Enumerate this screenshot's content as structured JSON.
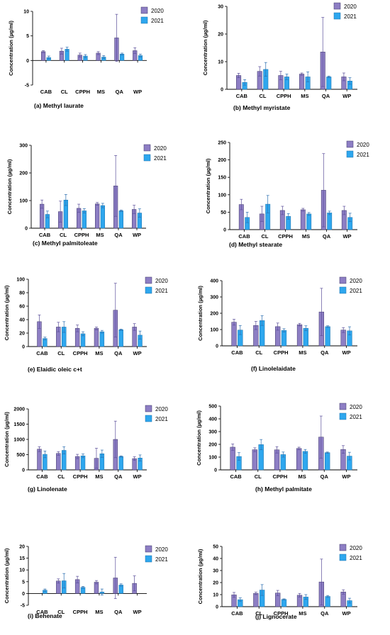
{
  "style": {
    "color_2020": "#8d7ec4",
    "color_2021": "#2ea7ee",
    "color_err": "#5b4f9a"
  },
  "chart_data": [
    {
      "type": "bar",
      "caption": "(a) Methyl laurate",
      "ylabel": "Concentration (µg/ml)",
      "ylim": [
        -5,
        10
      ],
      "yticks": [
        -5,
        0,
        5,
        10
      ],
      "categories": [
        "CAB",
        "CL",
        "CPPH",
        "MS",
        "QA",
        "WP"
      ],
      "series": [
        {
          "name": "2020",
          "values": [
            1.8,
            1.9,
            1.1,
            1.5,
            4.6,
            2.0
          ],
          "errors": [
            0.2,
            0.6,
            0.4,
            0.3,
            4.8,
            0.6
          ]
        },
        {
          "name": "2021",
          "values": [
            0.6,
            2.3,
            0.9,
            0.7,
            1.3,
            1.0
          ],
          "errors": [
            0.3,
            0.4,
            0.3,
            0.3,
            0.2,
            0.3
          ]
        }
      ]
    },
    {
      "type": "bar",
      "caption": "(b) Methyl myristate",
      "ylabel": "Concentration (µg/ml)",
      "ylim": [
        0,
        30
      ],
      "yticks": [
        0,
        10,
        20,
        30
      ],
      "categories": [
        "CAB",
        "CL",
        "CPPH",
        "MS",
        "QA",
        "WP"
      ],
      "series": [
        {
          "name": "2020",
          "values": [
            5.0,
            6.5,
            5.0,
            5.5,
            13.5,
            4.5
          ],
          "errors": [
            0.8,
            1.7,
            1.5,
            0.4,
            12.5,
            1.4
          ]
        },
        {
          "name": "2021",
          "values": [
            2.5,
            7.2,
            4.5,
            4.5,
            4.5,
            3.0
          ],
          "errors": [
            1.0,
            2.5,
            1.0,
            1.8,
            0.3,
            1.2
          ]
        }
      ]
    },
    {
      "type": "bar",
      "caption": "(c) Methyl palmitoleate",
      "ylabel": "Concentration (µg/ml)",
      "ylim": [
        0,
        300
      ],
      "yticks": [
        0,
        100,
        200,
        300
      ],
      "categories": [
        "CAB",
        "CL",
        "CPPH",
        "MS",
        "QA",
        "WP"
      ],
      "series": [
        {
          "name": "2020",
          "values": [
            87,
            60,
            72,
            88,
            153,
            68
          ],
          "errors": [
            15,
            38,
            15,
            5,
            110,
            15
          ]
        },
        {
          "name": "2021",
          "values": [
            50,
            102,
            63,
            82,
            63,
            55
          ],
          "errors": [
            12,
            20,
            8,
            8,
            3,
            15
          ]
        }
      ]
    },
    {
      "type": "bar",
      "caption": "(d) Methyl stearate",
      "ylabel": "Concentration (µg/ml)",
      "ylim": [
        0,
        250
      ],
      "yticks": [
        0,
        50,
        100,
        150,
        200,
        250
      ],
      "categories": [
        "CAB",
        "CL",
        "CPPH",
        "MS",
        "QA",
        "WP"
      ],
      "series": [
        {
          "name": "2020",
          "values": [
            72,
            45,
            55,
            57,
            113,
            55
          ],
          "errors": [
            15,
            22,
            12,
            4,
            105,
            12
          ]
        },
        {
          "name": "2021",
          "values": [
            35,
            73,
            38,
            45,
            48,
            35
          ],
          "errors": [
            15,
            25,
            8,
            4,
            5,
            12
          ]
        }
      ]
    },
    {
      "type": "bar",
      "caption": "(e) Elaidic oleic c+t",
      "ylabel": "Concentration (µg/ml)",
      "ylim": [
        0,
        100
      ],
      "yticks": [
        0,
        20,
        40,
        60,
        80,
        100
      ],
      "categories": [
        "CAB",
        "CL",
        "CPPH",
        "MS",
        "QA",
        "WP"
      ],
      "series": [
        {
          "name": "2020",
          "values": [
            37,
            29,
            27,
            27,
            54,
            29
          ],
          "errors": [
            10,
            7,
            5,
            2,
            40,
            5
          ]
        },
        {
          "name": "2021",
          "values": [
            12,
            29,
            19,
            22,
            25,
            17
          ],
          "errors": [
            2,
            8,
            3,
            2,
            1,
            6
          ]
        }
      ]
    },
    {
      "type": "bar",
      "caption": "(f) Linolelaidate",
      "ylabel": "Concentration (µg/ml)",
      "ylim": [
        0,
        400
      ],
      "yticks": [
        0,
        100,
        200,
        300,
        400
      ],
      "categories": [
        "CAB",
        "CL",
        "CPPH",
        "MS",
        "QA",
        "WP"
      ],
      "series": [
        {
          "name": "2020",
          "values": [
            145,
            125,
            118,
            130,
            208,
            97
          ],
          "errors": [
            18,
            25,
            22,
            8,
            145,
            15
          ]
        },
        {
          "name": "2021",
          "values": [
            97,
            155,
            95,
            108,
            118,
            92
          ],
          "errors": [
            28,
            30,
            10,
            15,
            5,
            25
          ]
        }
      ]
    },
    {
      "type": "bar",
      "caption": "(g) Linolenate",
      "ylabel": "Concentration (µg/ml)",
      "ylim": [
        0,
        2000
      ],
      "yticks": [
        0,
        500,
        1000,
        1500,
        2000
      ],
      "categories": [
        "CAB",
        "CL",
        "CPPH",
        "MS",
        "QA",
        "WP"
      ],
      "series": [
        {
          "name": "2020",
          "values": [
            680,
            540,
            440,
            380,
            1000,
            370
          ],
          "errors": [
            80,
            60,
            70,
            330,
            600,
            60
          ]
        },
        {
          "name": "2021",
          "values": [
            510,
            640,
            460,
            530,
            440,
            390
          ],
          "errors": [
            110,
            120,
            60,
            120,
            20,
            100
          ]
        }
      ]
    },
    {
      "type": "bar",
      "caption": "(h) Methyl palmitate",
      "ylabel": "Concentration (µg/ml)",
      "ylim": [
        0,
        500
      ],
      "yticks": [
        0,
        100,
        200,
        300,
        400,
        500
      ],
      "categories": [
        "CAB",
        "CL",
        "CPPH",
        "MS",
        "QA",
        "WP"
      ],
      "series": [
        {
          "name": "2020",
          "values": [
            178,
            158,
            157,
            168,
            257,
            160
          ],
          "errors": [
            25,
            15,
            25,
            10,
            165,
            30
          ]
        },
        {
          "name": "2021",
          "values": [
            105,
            198,
            120,
            145,
            135,
            108
          ],
          "errors": [
            30,
            40,
            20,
            15,
            5,
            30
          ]
        }
      ]
    },
    {
      "type": "bar",
      "caption": "(i) Behenate",
      "ylabel": "Concentration (µg/ml)",
      "ylim": [
        -5,
        20
      ],
      "yticks": [
        -5,
        0,
        5,
        10,
        15,
        20
      ],
      "categories": [
        "CAB",
        "CL",
        "CPPH",
        "MS",
        "QA",
        "WP"
      ],
      "series": [
        {
          "name": "2020",
          "values": [
            0,
            5.3,
            5.9,
            4.8,
            6.6,
            4.3
          ],
          "errors": [
            0,
            0.9,
            1.4,
            0.7,
            8.8,
            3.2
          ]
        },
        {
          "name": "2021",
          "values": [
            1.4,
            5.4,
            2.6,
            0.6,
            3.6,
            0
          ],
          "errors": [
            0.5,
            3.1,
            0.4,
            1.3,
            0.5,
            0
          ]
        }
      ]
    },
    {
      "type": "bar",
      "caption": "(j) Lignocerate",
      "ylabel": "Concentration (µg/ml)",
      "ylim": [
        0,
        50
      ],
      "yticks": [
        0,
        10,
        20,
        30,
        40,
        50
      ],
      "categories": [
        "CAB",
        "CL",
        "CPPH",
        "MS",
        "QA",
        "WP"
      ],
      "series": [
        {
          "name": "2020",
          "values": [
            9.8,
            11.0,
            11.3,
            9.5,
            20.5,
            12.2
          ],
          "errors": [
            2.0,
            1.0,
            2.2,
            1.5,
            19.0,
            1.8
          ]
        },
        {
          "name": "2021",
          "values": [
            5.8,
            13.8,
            6.0,
            8.0,
            8.5,
            5.0
          ],
          "errors": [
            1.5,
            4.5,
            0.5,
            2.0,
            0.8,
            2.0
          ]
        }
      ]
    }
  ]
}
